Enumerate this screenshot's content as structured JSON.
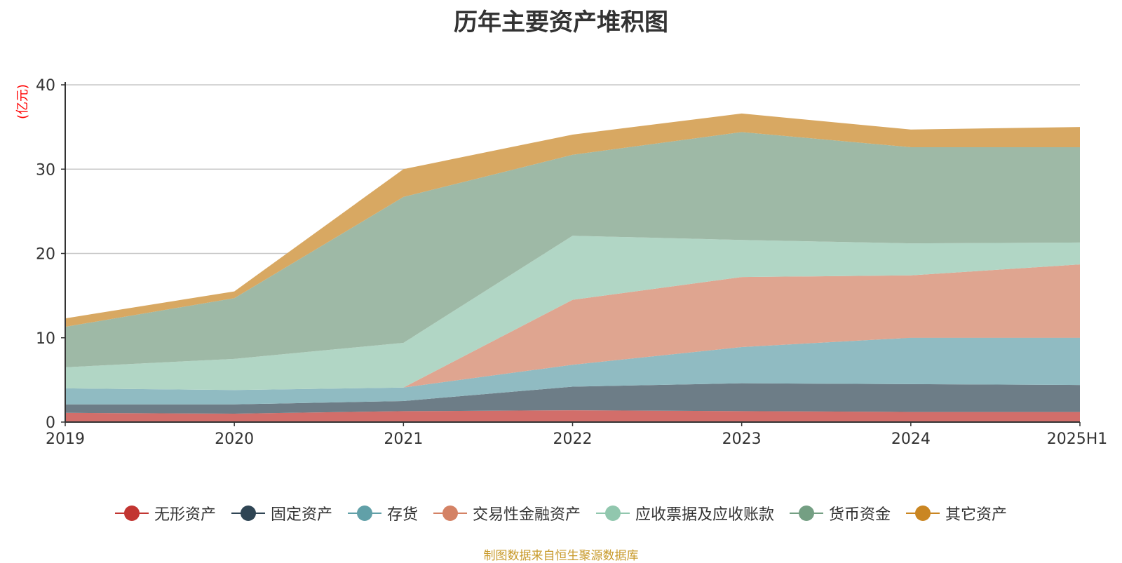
{
  "chart_data": {
    "type": "area",
    "stacked": true,
    "title": "历年主要资产堆积图",
    "ylabel": "(亿元)",
    "xlabel": "",
    "ylim": [
      0,
      40
    ],
    "yticks": [
      0,
      10,
      20,
      30,
      40
    ],
    "categories": [
      "2019",
      "2020",
      "2021",
      "2022",
      "2023",
      "2024",
      "2025H1"
    ],
    "series": [
      {
        "name": "无形资产",
        "color": "#c23531",
        "fill": "#d26e6a",
        "values": [
          1.1,
          1.0,
          1.3,
          1.4,
          1.3,
          1.2,
          1.2
        ]
      },
      {
        "name": "固定资产",
        "color": "#2f4554",
        "fill": "#6d7d87",
        "values": [
          1.0,
          1.1,
          1.2,
          2.8,
          3.3,
          3.3,
          3.2
        ]
      },
      {
        "name": "存货",
        "color": "#61a0a8",
        "fill": "#90bbc2",
        "values": [
          1.9,
          1.7,
          1.6,
          2.6,
          4.3,
          5.5,
          5.6
        ]
      },
      {
        "name": "交易性金融资产",
        "color": "#d48265",
        "fill": "#dfa590",
        "values": [
          0,
          0,
          0,
          7.7,
          8.3,
          7.4,
          8.7
        ]
      },
      {
        "name": "应收票据及应收账款",
        "color": "#91c7ae",
        "fill": "#b1d6c5",
        "values": [
          2.5,
          3.7,
          5.3,
          7.6,
          4.4,
          3.8,
          2.6
        ]
      },
      {
        "name": "货币资金",
        "color": "#749f83",
        "fill": "#9eb9a6",
        "values": [
          4.8,
          7.2,
          17.3,
          9.6,
          12.8,
          11.4,
          11.3
        ]
      },
      {
        "name": "其它资产",
        "color": "#ca8622",
        "fill": "#d8a862",
        "values": [
          1.0,
          0.8,
          3.3,
          2.4,
          2.2,
          2.1,
          2.4
        ]
      }
    ]
  },
  "source_note": "制图数据来自恒生聚源数据库"
}
